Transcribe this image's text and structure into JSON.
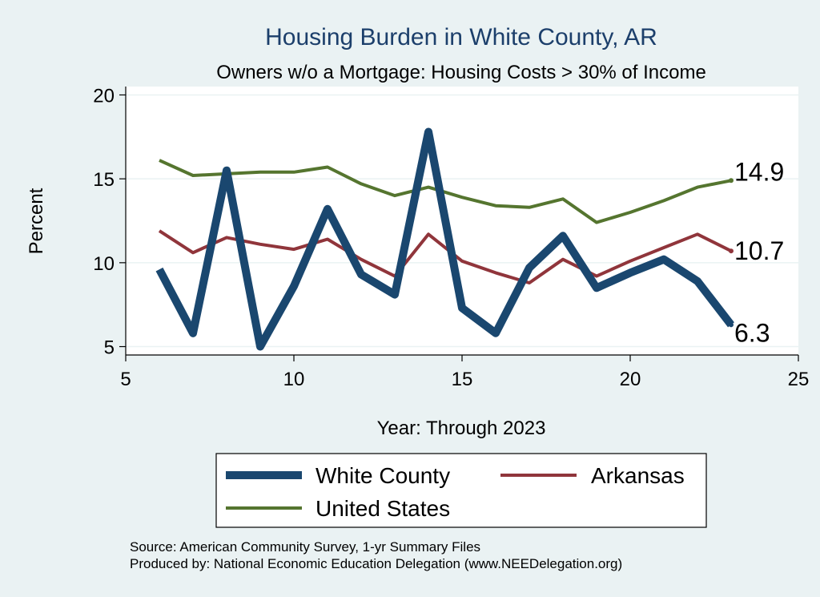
{
  "chart_data": {
    "type": "line",
    "title": "Housing Burden in White County, AR",
    "subtitle": "Owners w/o a Mortgage: Housing Costs > 30% of Income",
    "xlabel": "Year: Through 2023",
    "ylabel": "Percent",
    "xlim": [
      5,
      25
    ],
    "ylim": [
      4.5,
      20.5
    ],
    "xticks": [
      5,
      10,
      15,
      20,
      25
    ],
    "yticks": [
      5,
      10,
      15,
      20
    ],
    "x": [
      6,
      7,
      8,
      9,
      10,
      11,
      12,
      13,
      14,
      15,
      16,
      17,
      18,
      19,
      20,
      21,
      22,
      23
    ],
    "series": [
      {
        "name": "White County",
        "color": "#1a476f",
        "values": [
          9.6,
          5.8,
          15.5,
          5.0,
          8.6,
          13.2,
          9.3,
          8.1,
          17.8,
          7.3,
          5.8,
          9.7,
          11.6,
          8.5,
          9.4,
          10.2,
          8.9,
          6.3
        ],
        "end_label": "6.3"
      },
      {
        "name": "Arkansas",
        "color": "#90353b",
        "values": [
          11.9,
          10.6,
          11.5,
          11.1,
          10.8,
          11.4,
          10.2,
          9.2,
          11.7,
          10.1,
          9.4,
          8.8,
          10.2,
          9.2,
          10.1,
          10.9,
          11.7,
          10.7
        ],
        "end_label": "10.7"
      },
      {
        "name": "United States",
        "color": "#55752f",
        "values": [
          16.1,
          15.2,
          15.3,
          15.4,
          15.4,
          15.7,
          14.7,
          14.0,
          14.5,
          13.9,
          13.4,
          13.3,
          13.8,
          12.4,
          13.0,
          13.7,
          14.5,
          14.9
        ],
        "end_label": "14.9"
      }
    ],
    "legend": {
      "position": "bottom",
      "entries": [
        "White County",
        "Arkansas",
        "United States"
      ]
    },
    "notes": [
      "Source: American Community Survey, 1-yr Summary Files",
      "Produced by: National Economic Education Delegation (www.NEEDelegation.org)"
    ]
  }
}
